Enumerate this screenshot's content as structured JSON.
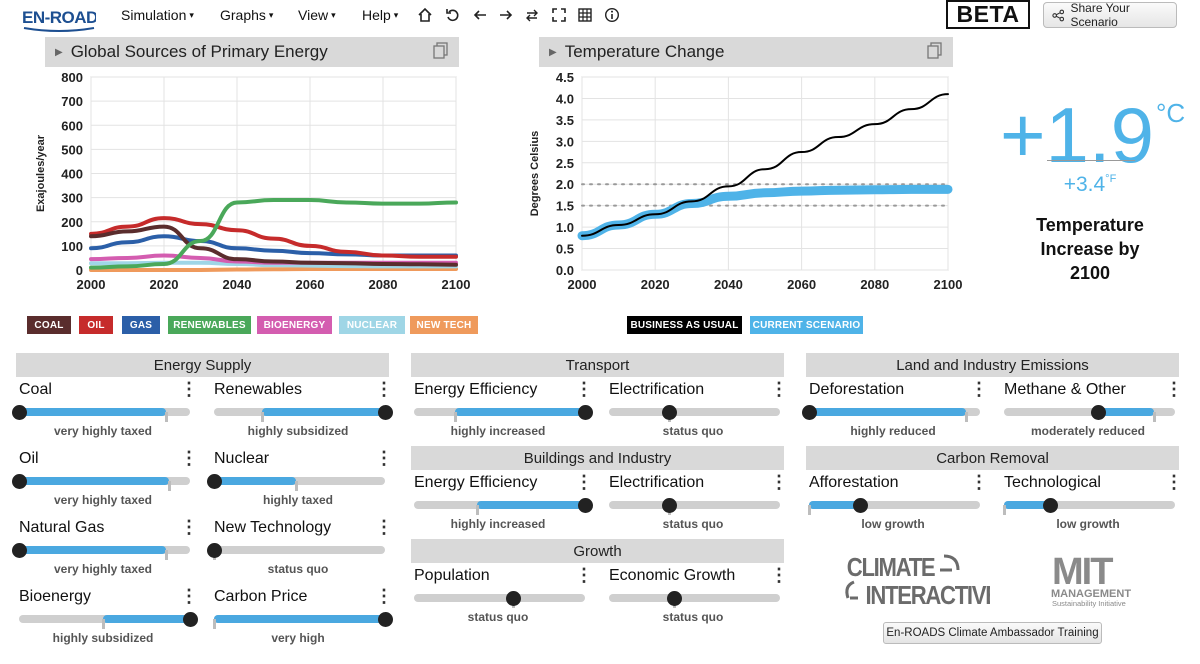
{
  "app": {
    "logo_text": "EN-ROADS",
    "beta": "BETA",
    "share_label": "Share Your Scenario"
  },
  "menus": [
    {
      "label": "Simulation"
    },
    {
      "label": "Graphs"
    },
    {
      "label": "View"
    },
    {
      "label": "Help"
    }
  ],
  "toolbar_icons": [
    "home-icon",
    "undo-icon",
    "back-arrow-icon",
    "forward-arrow-icon",
    "swap-icon",
    "fullscreen-icon",
    "table-icon",
    "info-icon"
  ],
  "graph1": {
    "title": "Global Sources of Primary Energy",
    "ylabel": "Exajoules/year",
    "legend": [
      {
        "name": "COAL",
        "color": "#5a2d2d"
      },
      {
        "name": "OIL",
        "color": "#c62b2b"
      },
      {
        "name": "GAS",
        "color": "#2b5fa8"
      },
      {
        "name": "RENEWABLES",
        "color": "#4aa85a"
      },
      {
        "name": "BIOENERGY",
        "color": "#d45db0"
      },
      {
        "name": "NUCLEAR",
        "color": "#9fd6e6"
      },
      {
        "name": "NEW TECH",
        "color": "#ef9a5c"
      }
    ]
  },
  "graph2": {
    "title": "Temperature Change",
    "ylabel": "Degrees Celsius",
    "legend": [
      {
        "name": "BUSINESS AS USUAL",
        "color": "#000000"
      },
      {
        "name": "CURRENT SCENARIO",
        "color": "#4fb3e8"
      }
    ]
  },
  "chart_data": [
    {
      "type": "line",
      "title": "Global Sources of Primary Energy",
      "ylabel": "Exajoules/year",
      "x": [
        2000,
        2010,
        2020,
        2030,
        2040,
        2050,
        2060,
        2070,
        2080,
        2090,
        2100
      ],
      "xticks": [
        2000,
        2020,
        2040,
        2060,
        2080,
        2100
      ],
      "yticks": [
        0,
        100,
        200,
        300,
        400,
        500,
        600,
        700,
        800
      ],
      "xlim": [
        2000,
        2100
      ],
      "ylim": [
        0,
        800
      ],
      "grid": true,
      "series": [
        {
          "name": "COAL",
          "color": "#5a2d2d",
          "values": [
            140,
            160,
            180,
            90,
            45,
            35,
            30,
            28,
            25,
            24,
            22
          ]
        },
        {
          "name": "OIL",
          "color": "#c62b2b",
          "values": [
            150,
            180,
            215,
            190,
            165,
            130,
            100,
            75,
            60,
            55,
            55
          ]
        },
        {
          "name": "GAS",
          "color": "#2b5fa8",
          "values": [
            90,
            115,
            140,
            120,
            90,
            80,
            70,
            65,
            60,
            60,
            60
          ]
        },
        {
          "name": "RENEWABLES",
          "color": "#4aa85a",
          "values": [
            10,
            15,
            25,
            120,
            280,
            290,
            290,
            280,
            275,
            275,
            280
          ]
        },
        {
          "name": "BIOENERGY",
          "color": "#d45db0",
          "values": [
            45,
            50,
            60,
            50,
            35,
            30,
            30,
            30,
            30,
            30,
            30
          ]
        },
        {
          "name": "NUCLEAR",
          "color": "#9fd6e6",
          "values": [
            28,
            28,
            30,
            30,
            25,
            20,
            18,
            16,
            15,
            15,
            15
          ]
        },
        {
          "name": "NEW TECH",
          "color": "#ef9a5c",
          "values": [
            0,
            0,
            0,
            0,
            2,
            3,
            4,
            4,
            4,
            4,
            4
          ]
        }
      ]
    },
    {
      "type": "line",
      "title": "Temperature Change",
      "ylabel": "Degrees Celsius",
      "x": [
        2000,
        2010,
        2020,
        2030,
        2040,
        2050,
        2060,
        2070,
        2080,
        2090,
        2100
      ],
      "xticks": [
        2000,
        2020,
        2040,
        2060,
        2080,
        2100
      ],
      "yticks": [
        0.0,
        0.5,
        1.0,
        1.5,
        2.0,
        2.5,
        3.0,
        3.5,
        4.0,
        4.5
      ],
      "xlim": [
        2000,
        2100
      ],
      "ylim": [
        0,
        4.5
      ],
      "reference_lines": [
        1.5,
        2.0
      ],
      "grid": true,
      "series": [
        {
          "name": "BUSINESS AS USUAL",
          "color": "#000000",
          "values": [
            0.8,
            1.05,
            1.3,
            1.6,
            1.95,
            2.35,
            2.75,
            3.1,
            3.4,
            3.75,
            4.1
          ]
        },
        {
          "name": "CURRENT SCENARIO",
          "color": "#4fb3e8",
          "values": [
            0.8,
            1.05,
            1.3,
            1.55,
            1.72,
            1.8,
            1.84,
            1.86,
            1.87,
            1.88,
            1.88
          ]
        }
      ]
    }
  ],
  "temperature": {
    "celsius": "+1.9",
    "celsius_unit": "°C",
    "fahrenheit": "+3.4",
    "fahrenheit_unit": "°F",
    "caption_lines": [
      "Temperature",
      "Increase by",
      "2100"
    ]
  },
  "sections": {
    "energy_supply": "Energy Supply",
    "transport": "Transport",
    "buildings": "Buildings and Industry",
    "growth": "Growth",
    "land": "Land and Industry Emissions",
    "carbon_removal": "Carbon Removal"
  },
  "sliders": {
    "coal": {
      "label": "Coal",
      "status": "very highly taxed",
      "level": 0.0
    },
    "renewables": {
      "label": "Renewables",
      "status": "highly subsidized",
      "level": 1.0
    },
    "oil": {
      "label": "Oil",
      "status": "very highly taxed",
      "level": 0.0
    },
    "nuclear": {
      "label": "Nuclear",
      "status": "highly taxed",
      "level": 0.0
    },
    "natural_gas": {
      "label": "Natural Gas",
      "status": "very highly taxed",
      "level": 0.0
    },
    "new_technology": {
      "label": "New Technology",
      "status": "status quo",
      "level": 0.0
    },
    "bioenergy": {
      "label": "Bioenergy",
      "status": "highly subsidized",
      "level": 1.0
    },
    "carbon_price": {
      "label": "Carbon Price",
      "status": "very high",
      "level": 1.0
    },
    "transport_efficiency": {
      "label": "Energy Efficiency",
      "status": "highly increased",
      "level": 1.0
    },
    "transport_electrification": {
      "label": "Electrification",
      "status": "status quo",
      "level": 0.35
    },
    "buildings_efficiency": {
      "label": "Energy Efficiency",
      "status": "highly increased",
      "level": 1.0
    },
    "buildings_electrification": {
      "label": "Electrification",
      "status": "status quo",
      "level": 0.35
    },
    "population": {
      "label": "Population",
      "status": "status quo",
      "level": 0.58
    },
    "economic_growth": {
      "label": "Economic Growth",
      "status": "status quo",
      "level": 0.38
    },
    "deforestation": {
      "label": "Deforestation",
      "status": "highly reduced",
      "level": 0.0
    },
    "methane": {
      "label": "Methane & Other",
      "status": "moderately reduced",
      "level": 0.55
    },
    "afforestation": {
      "label": "Afforestation",
      "status": "low growth",
      "level": 0.3
    },
    "technological": {
      "label": "Technological",
      "status": "low growth",
      "level": 0.27
    }
  },
  "logos": {
    "climate_interactive": "CLIMATE INTERACTIVE",
    "mit": "MIT",
    "mit_management": "MANAGEMENT",
    "mit_sustain": "Sustainability Initiative"
  },
  "footer_button": "En-ROADS Climate Ambassador Training"
}
